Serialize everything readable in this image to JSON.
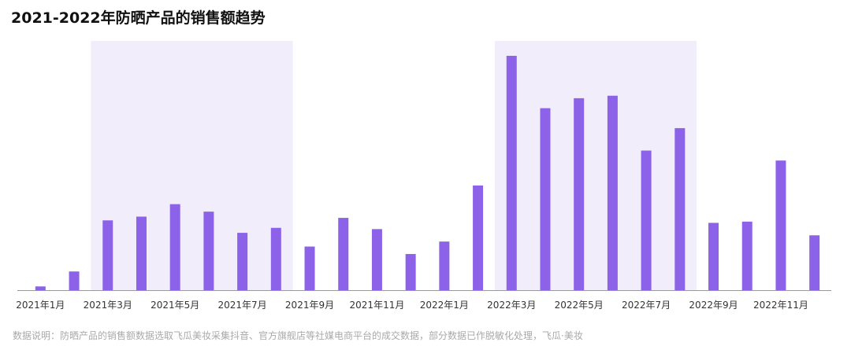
{
  "chart_data": {
    "type": "bar",
    "title": "2021-2022年防晒产品的销售额趋势",
    "categories": [
      "2021年1月",
      "2021年2月",
      "2021年3月",
      "2021年4月",
      "2021年5月",
      "2021年6月",
      "2021年7月",
      "2021年8月",
      "2021年9月",
      "2021年10月",
      "2021年11月",
      "2021年12月",
      "2022年1月",
      "2022年2月",
      "2022年3月",
      "2022年4月",
      "2022年5月",
      "2022年6月",
      "2022年7月",
      "2022年8月",
      "2022年9月",
      "2022年10月",
      "2022年11月",
      "2022年12月"
    ],
    "tick_labels": [
      "2021年1月",
      "",
      "2021年3月",
      "",
      "2021年5月",
      "",
      "2021年7月",
      "",
      "2021年9月",
      "",
      "2021年11月",
      "",
      "2022年1月",
      "",
      "2022年3月",
      "",
      "2022年5月",
      "",
      "2022年7月",
      "",
      "2022年9月",
      "",
      "2022年11月",
      ""
    ],
    "values": [
      1.5,
      7.5,
      28,
      29.5,
      34.5,
      31.5,
      23,
      25,
      17.5,
      29,
      24.5,
      14.5,
      19.5,
      42,
      94,
      73,
      77,
      78,
      56,
      65,
      27,
      27.5,
      52,
      22
    ],
    "ylim": [
      0,
      100
    ],
    "highlight_ranges": [
      [
        "2021年3月",
        "2021年8月"
      ],
      [
        "2022年3月",
        "2022年8月"
      ]
    ],
    "colors": {
      "bar": "#8B62E8",
      "highlight": "#F1EDFB",
      "axis": "#999999"
    },
    "grid": false,
    "xlabel": "",
    "ylabel": ""
  },
  "footnote": "数据说明：防晒产品的销售额数据选取飞瓜美妆采集抖音、官方旗舰店等社媒电商平台的成交数据，部分数据已作脱敏化处理，飞瓜·美妆"
}
